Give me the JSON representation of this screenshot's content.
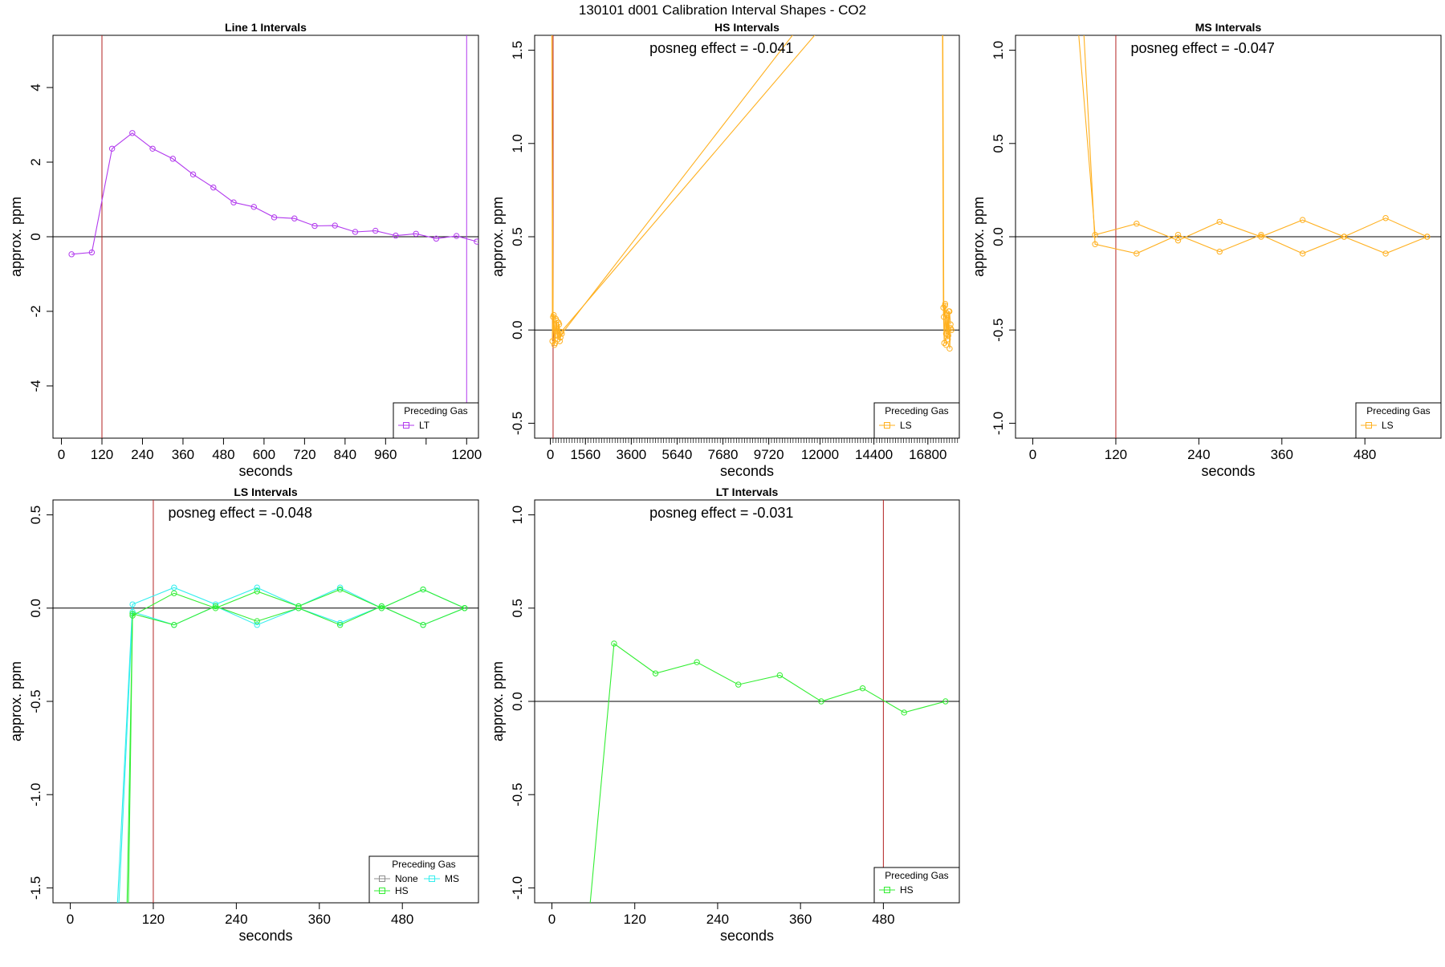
{
  "figure": {
    "title": "130101  d001   Calibration Interval Shapes - CO2"
  },
  "colors": {
    "LT": "#B23AEE",
    "LS": "#FFB01F",
    "HS": "#33EE33",
    "MS": "#33EEEE",
    "None": "#8C8C8C",
    "calib_line": "#B22222",
    "zero_line": "#000000"
  },
  "chart_data": [
    {
      "id": "line1",
      "type": "line",
      "title": "Line 1 Intervals",
      "xlabel": "seconds",
      "ylabel": "approx. ppm",
      "xlim": [
        -25,
        1235
      ],
      "ylim": [
        -5.4,
        5.4
      ],
      "xticks": [
        0,
        120,
        240,
        360,
        480,
        600,
        720,
        840,
        960,
        1080,
        1200
      ],
      "xtick_labels": [
        "0",
        "120",
        "240",
        "360",
        "480",
        "600",
        "720",
        "840",
        "960",
        "",
        "1200"
      ],
      "yticks": [
        -4,
        -2,
        0,
        2,
        4
      ],
      "ytick_labels": [
        "-4",
        "-2",
        "0",
        "2",
        "4"
      ],
      "vlines": [
        {
          "x": 120,
          "color": "calib"
        },
        {
          "x": 1200,
          "color": "LT"
        }
      ],
      "annotation": "",
      "legend": {
        "title": "Preceding Gas",
        "entries": [
          "LT"
        ]
      },
      "series": [
        {
          "name": "LT",
          "segments": [
            {
              "x": [
                30,
                90,
                150,
                210,
                270,
                330,
                390,
                450,
                510,
                570,
                630,
                690,
                750,
                810,
                870,
                930,
                990,
                1050,
                1110,
                1170,
                1230
              ],
              "y": [
                -0.47,
                -0.42,
                2.36,
                2.78,
                2.36,
                2.09,
                1.67,
                1.32,
                0.92,
                0.8,
                0.52,
                0.49,
                0.29,
                0.3,
                0.13,
                0.16,
                0.03,
                0.08,
                -0.05,
                0.02,
                -0.13
              ]
            }
          ]
        }
      ]
    },
    {
      "id": "hs",
      "type": "line",
      "title": "HS Intervals",
      "xlabel": "seconds",
      "ylabel": "approx. ppm",
      "xlim": [
        -700,
        18200
      ],
      "ylim": [
        -0.58,
        1.58
      ],
      "xticks": [
        0,
        1560,
        3600,
        5640,
        7680,
        9720,
        12000,
        14400,
        16800
      ],
      "xtick_labels": [
        "0",
        "1560",
        "3600",
        "5640",
        "7680",
        "9720",
        "12000",
        "14400",
        "16800"
      ],
      "minor_tick_step": 120,
      "yticks": [
        -0.5,
        0.0,
        0.5,
        1.0,
        1.5
      ],
      "ytick_labels": [
        "-0.5",
        "0.0",
        "0.5",
        "1.0",
        "1.5"
      ],
      "vlines": [
        {
          "x": 120,
          "color": "calib"
        }
      ],
      "annotation": "posneg effect = -0.041",
      "legend": {
        "title": "Preceding Gas",
        "entries": [
          "LS"
        ]
      },
      "series": [
        {
          "name": "LS",
          "segments": [
            {
              "x": [
                60,
                90,
                150,
                210,
                270,
                330,
                390,
                450,
                510,
                10900
              ],
              "y": [
                3.0,
                -0.06,
                0.08,
                -0.07,
                0.05,
                -0.05,
                0.03,
                -0.04,
                -0.02,
                1.6
              ]
            },
            {
              "x": [
                30,
                120,
                180,
                240,
                300,
                360,
                420,
                480,
                11900
              ],
              "y": [
                2.5,
                0.07,
                -0.08,
                0.06,
                -0.03,
                0.04,
                -0.06,
                -0.01,
                1.6
              ]
            },
            {
              "x": [
                17450,
                17490,
                17530,
                17570,
                17610,
                17650,
                17690,
                17730,
                17770,
                17810,
                17850
              ],
              "y": [
                1.7,
                0.12,
                -0.07,
                0.14,
                -0.08,
                0.09,
                -0.05,
                0.1,
                -0.1,
                0.01,
                0.0
              ]
            },
            {
              "x": [
                17460,
                17510,
                17560,
                17610,
                17660,
                17710,
                17760,
                17810
              ],
              "y": [
                1.8,
                0.07,
                0.13,
                -0.02,
                0.08,
                -0.03,
                0.1,
                0.03
              ]
            }
          ]
        }
      ]
    },
    {
      "id": "ms",
      "type": "line",
      "title": "MS Intervals",
      "xlabel": "seconds",
      "ylabel": "approx. ppm",
      "xlim": [
        -25,
        590
      ],
      "ylim": [
        -1.08,
        1.08
      ],
      "xticks": [
        0,
        120,
        240,
        360,
        480
      ],
      "xtick_labels": [
        "0",
        "120",
        "240",
        "360",
        "480"
      ],
      "yticks": [
        -1.0,
        -0.5,
        0.0,
        0.5,
        1.0
      ],
      "ytick_labels": [
        "-1.0",
        "-0.5",
        "0.0",
        "0.5",
        "1.0"
      ],
      "vlines": [
        {
          "x": 120,
          "color": "calib"
        }
      ],
      "annotation": "posneg effect = -0.047",
      "legend": {
        "title": "Preceding Gas",
        "entries": [
          "LS"
        ]
      },
      "series": [
        {
          "name": "LS",
          "segments": [
            {
              "x": [
                55,
                90,
                150,
                210,
                270,
                330,
                390,
                450,
                510,
                570
              ],
              "y": [
                1.6,
                0.01,
                0.07,
                -0.02,
                0.08,
                -0.0,
                0.09,
                0.0,
                0.1,
                0.0
              ]
            },
            {
              "x": [
                65,
                90,
                150,
                210,
                270,
                330,
                390,
                450,
                510,
                570
              ],
              "y": [
                1.7,
                -0.04,
                -0.09,
                0.01,
                -0.08,
                0.01,
                -0.09,
                0.0,
                -0.09,
                0.0
              ]
            }
          ]
        }
      ]
    },
    {
      "id": "ls",
      "type": "line",
      "title": "LS Intervals",
      "xlabel": "seconds",
      "ylabel": "approx. ppm",
      "xlim": [
        -25,
        590
      ],
      "ylim": [
        -1.58,
        0.58
      ],
      "xticks": [
        0,
        120,
        240,
        360,
        480
      ],
      "xtick_labels": [
        "0",
        "120",
        "240",
        "360",
        "480"
      ],
      "yticks": [
        -1.5,
        -1.0,
        -0.5,
        0.0,
        0.5
      ],
      "ytick_labels": [
        "-1.5",
        "-1.0",
        "-0.5",
        "0.0",
        "0.5"
      ],
      "vlines": [
        {
          "x": 120,
          "color": "calib"
        }
      ],
      "annotation": "posneg effect = -0.048",
      "legend": {
        "title": "Preceding Gas",
        "entries": [
          "None",
          "MS",
          "HS"
        ]
      },
      "series": [
        {
          "name": "MS",
          "segments": [
            {
              "x": [
                68,
                90,
                150,
                210,
                270,
                330,
                390,
                450,
                510,
                570
              ],
              "y": [
                -1.6,
                0.02,
                0.11,
                0.02,
                0.11,
                0.01,
                0.11,
                0.0,
                0.1,
                0.0
              ]
            },
            {
              "x": [
                70,
                90,
                150,
                210,
                270,
                330,
                390,
                450,
                510,
                570
              ],
              "y": [
                -1.6,
                -0.02,
                -0.09,
                0.01,
                -0.09,
                0.0,
                -0.08,
                0.01,
                -0.09,
                0.0
              ]
            }
          ]
        },
        {
          "name": "HS",
          "segments": [
            {
              "x": [
                82,
                90,
                150,
                210,
                270,
                330,
                390,
                450,
                510,
                570
              ],
              "y": [
                -1.6,
                -0.04,
                0.08,
                0.0,
                0.09,
                0.01,
                0.1,
                0.0,
                0.1,
                0.0
              ]
            },
            {
              "x": [
                84,
                90,
                150,
                210,
                270,
                330,
                390,
                450,
                510,
                570
              ],
              "y": [
                -1.6,
                -0.03,
                -0.09,
                0.01,
                -0.07,
                0.0,
                -0.09,
                0.01,
                -0.09,
                0.0
              ]
            }
          ]
        }
      ]
    },
    {
      "id": "lt",
      "type": "line",
      "title": "LT Intervals",
      "xlabel": "seconds",
      "ylabel": "approx. ppm",
      "xlim": [
        -25,
        590
      ],
      "ylim": [
        -1.08,
        1.08
      ],
      "xticks": [
        0,
        120,
        240,
        360,
        480
      ],
      "xtick_labels": [
        "0",
        "120",
        "240",
        "360",
        "480"
      ],
      "yticks": [
        -1.0,
        -0.5,
        0.0,
        0.5,
        1.0
      ],
      "ytick_labels": [
        "-1.0",
        "-0.5",
        "0.0",
        "0.5",
        "1.0"
      ],
      "vlines": [
        {
          "x": 480,
          "color": "calib"
        }
      ],
      "annotation": "posneg effect = -0.031",
      "legend": {
        "title": "Preceding Gas",
        "entries": [
          "HS"
        ]
      },
      "series": [
        {
          "name": "HS",
          "segments": [
            {
              "x": [
                55,
                90,
                150,
                210,
                270,
                330,
                390,
                450,
                510,
                570
              ],
              "y": [
                -1.1,
                0.31,
                0.15,
                0.21,
                0.09,
                0.14,
                0.0,
                0.07,
                -0.06,
                0.0
              ]
            }
          ]
        }
      ]
    }
  ]
}
